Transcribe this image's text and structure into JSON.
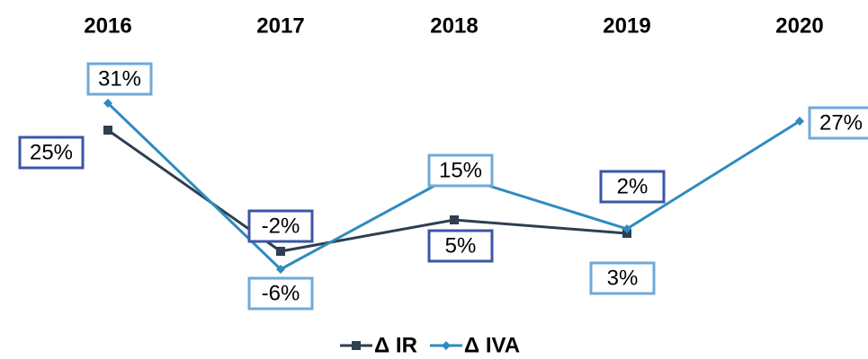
{
  "chart_data": {
    "type": "line",
    "categories": [
      "2016",
      "2017",
      "2018",
      "2019",
      "2020"
    ],
    "ylim": [
      -10,
      35
    ],
    "series": [
      {
        "name": "Δ IR",
        "color": "#2f3e50",
        "label_border": "#3b56a6",
        "values": [
          25,
          -2,
          5,
          2,
          null
        ],
        "value_labels": [
          "25%",
          "-2%",
          "5%",
          "2%",
          null
        ]
      },
      {
        "name": "Δ IVA",
        "color": "#2e8bc0",
        "label_border": "#6faad8",
        "values": [
          31,
          -6,
          15,
          3,
          27
        ],
        "value_labels": [
          "31%",
          "-6%",
          "15%",
          "3%",
          "27%"
        ]
      }
    ]
  }
}
